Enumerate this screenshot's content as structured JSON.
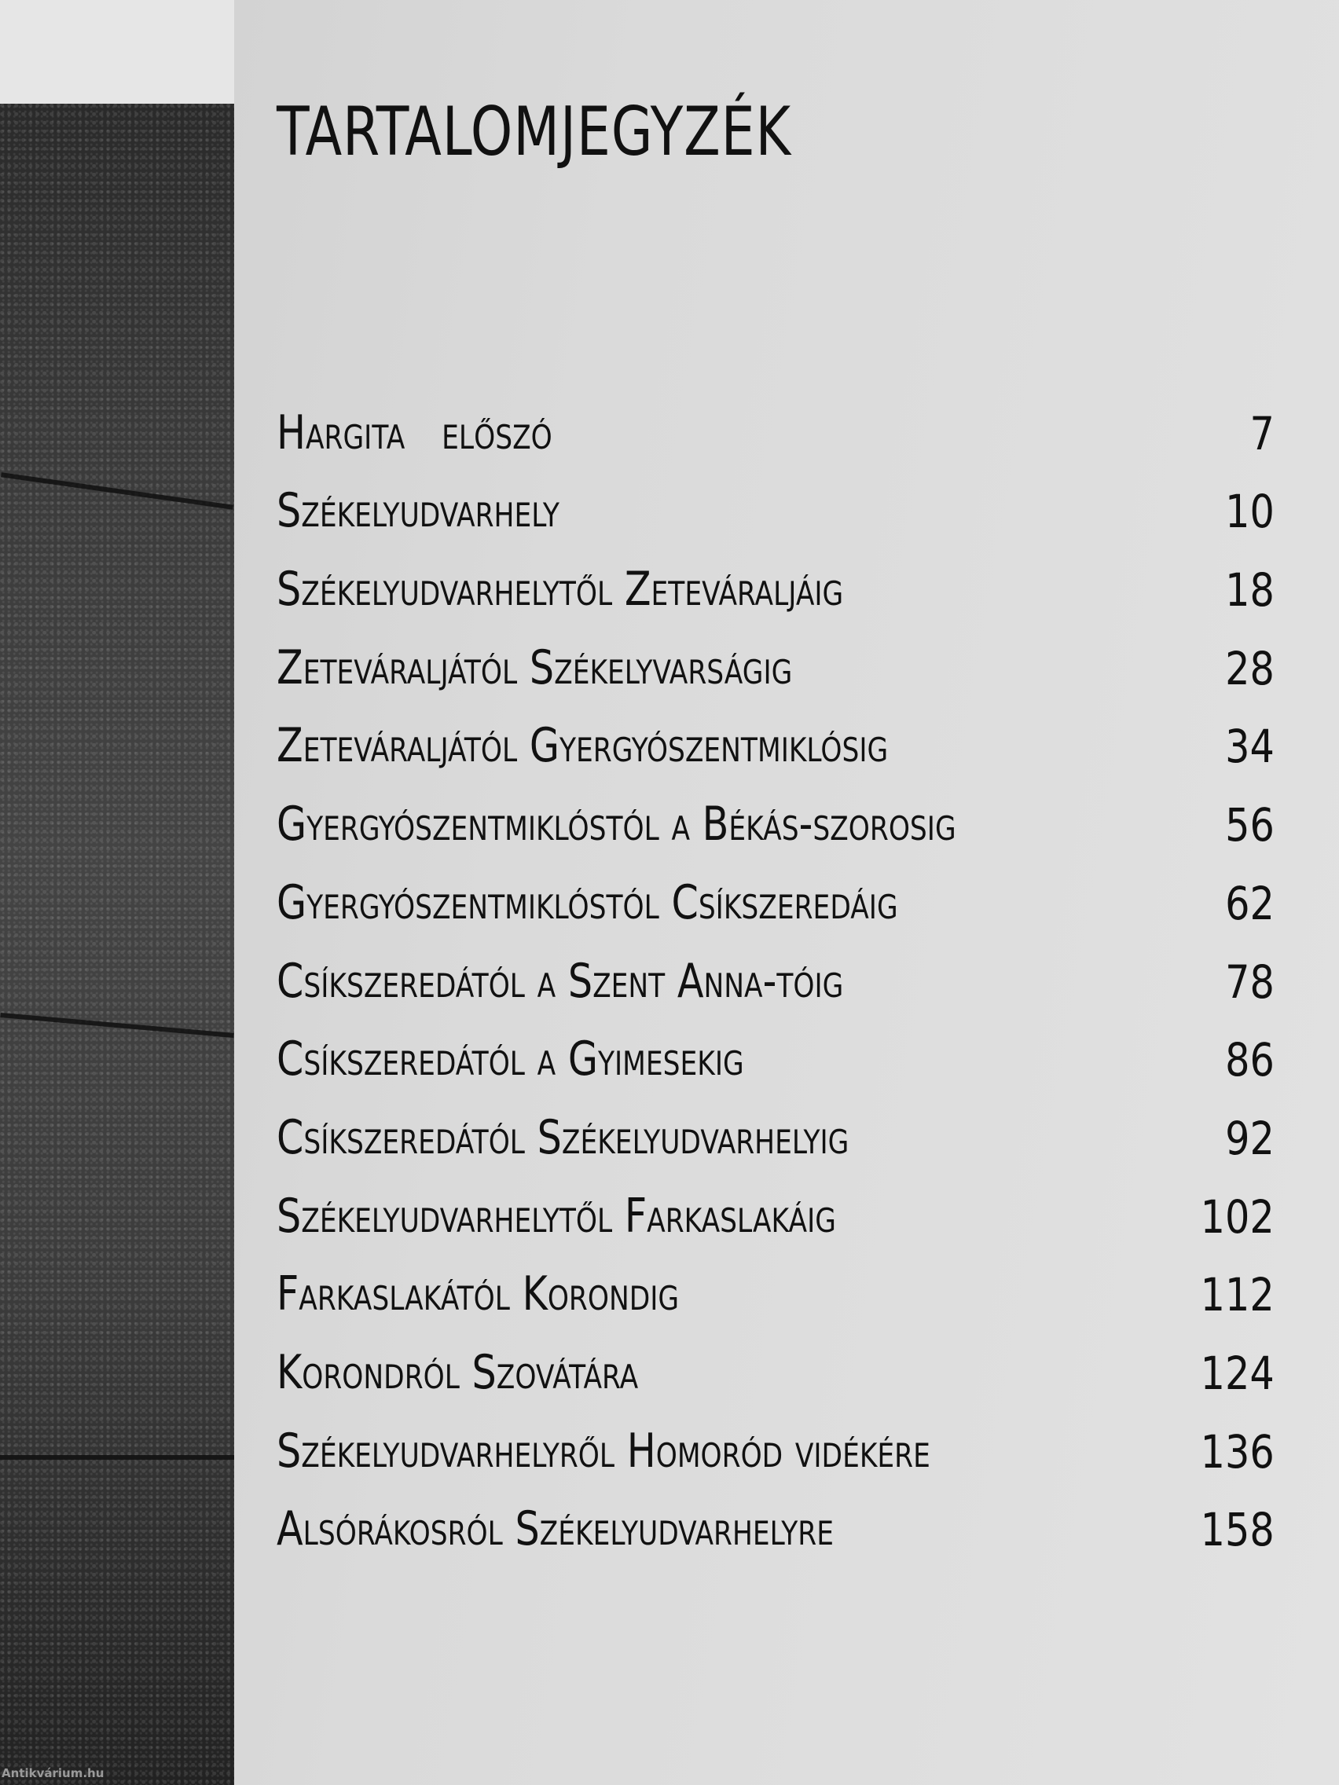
{
  "title": "TARTALOMJEGYZÉK",
  "entries": [
    {
      "label": "Hargita   előszó",
      "page": "7"
    },
    {
      "label": "Székelyudvarhely",
      "page": "10"
    },
    {
      "label": "Székelyudvarhelytől Zeteváraljáig",
      "page": "18"
    },
    {
      "label": "Zeteváraljától Székelyvarságig",
      "page": "28"
    },
    {
      "label": "Zeteváraljától Gyergyószentmiklósig",
      "page": "34"
    },
    {
      "label": "Gyergyószentmiklóstól a Békás-szorosig",
      "page": "56"
    },
    {
      "label": "Gyergyószentmiklóstól Csíkszeredáig",
      "page": "62"
    },
    {
      "label": "Csíkszeredától a Szent Anna-tóig",
      "page": "78"
    },
    {
      "label": "Csíkszeredától a Gyimesekig",
      "page": "86"
    },
    {
      "label": "Csíkszeredától Székelyudvarhelyig",
      "page": "92"
    },
    {
      "label": "Székelyudvarhelytől Farkaslakáig",
      "page": "102"
    },
    {
      "label": "Farkaslakától Korondig",
      "page": "112"
    },
    {
      "label": "Korondról Szovátára",
      "page": "124"
    },
    {
      "label": "Székelyudvarhelyről Homoród vidékére",
      "page": "136"
    },
    {
      "label": "Alsórákosról Székelyudvarhelyre",
      "page": "158"
    }
  ],
  "watermark": "Antikvárium.hu"
}
